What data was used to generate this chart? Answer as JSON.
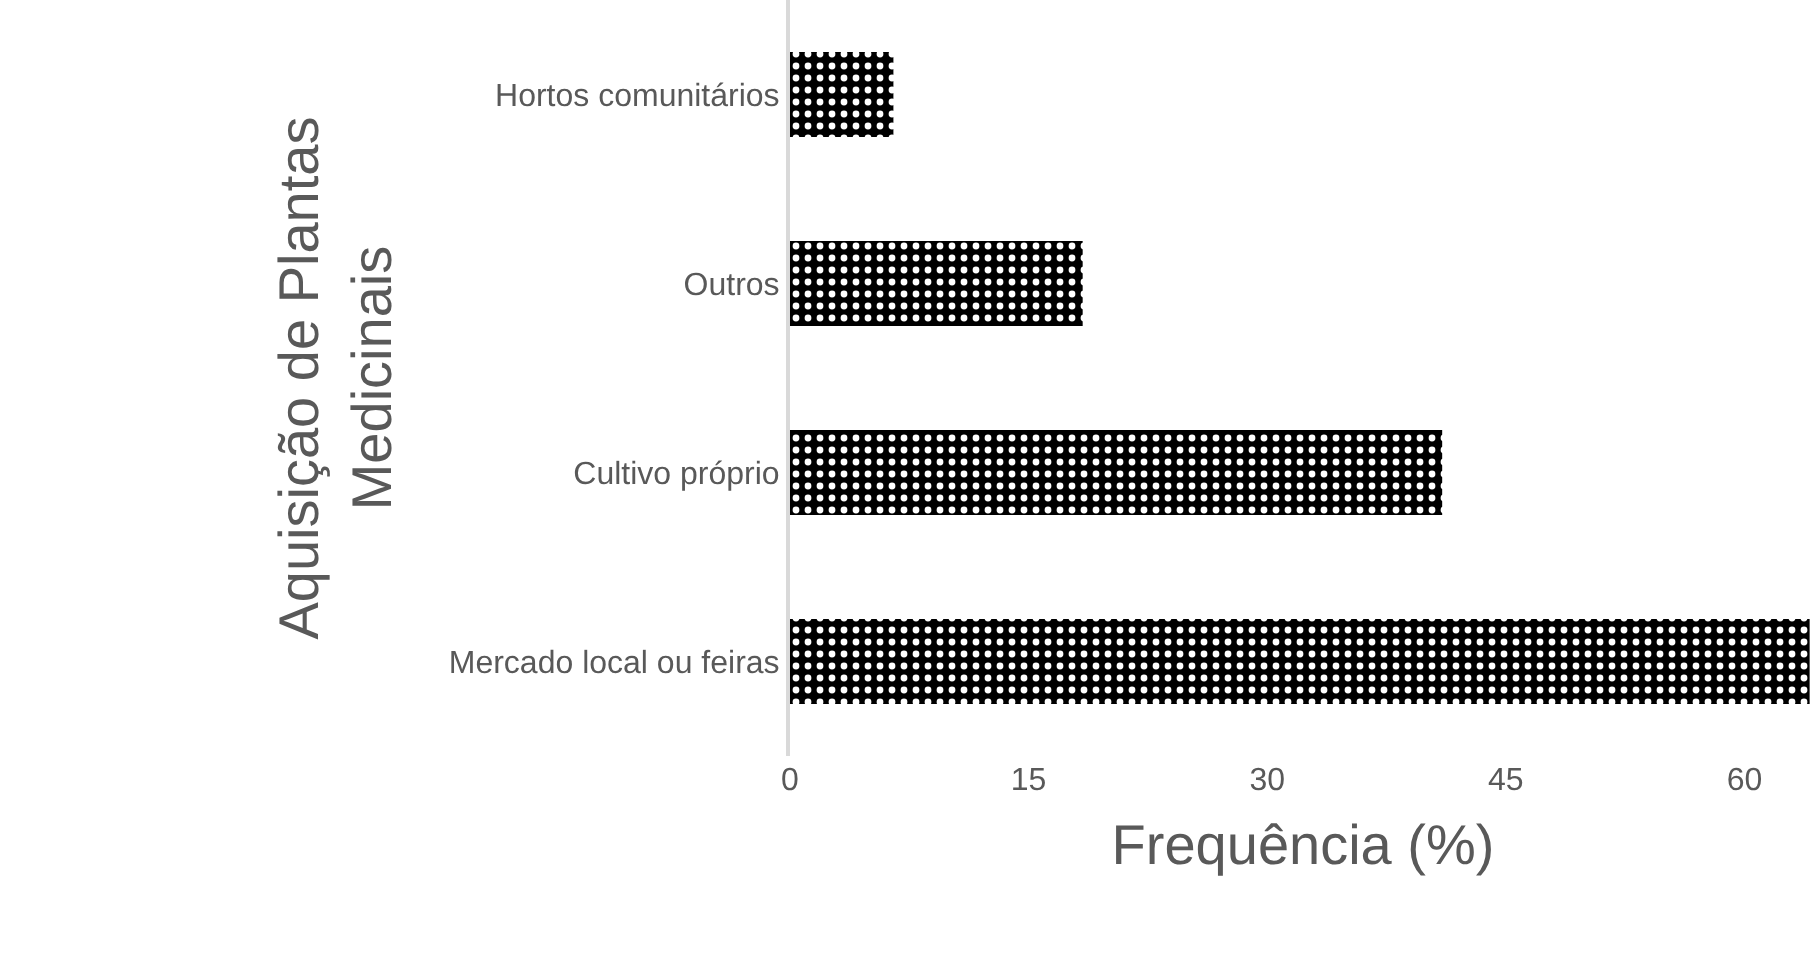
{
  "chart_data": {
    "type": "bar",
    "orientation": "horizontal",
    "xlabel": "Frequência (%)",
    "ylabel": "Aquisição de Plantas Medicinais",
    "categories": [
      "Hortos comunitários",
      "Outros",
      "Cultivo próprio",
      "Mercado local ou feiras"
    ],
    "values": [
      6.5,
      18.4,
      41,
      64.1
    ],
    "color": "#000000",
    "xlim": [
      0,
      64.5
    ],
    "xticks": [
      0,
      15,
      30,
      45,
      60
    ],
    "grid": false,
    "legend": false
  }
}
